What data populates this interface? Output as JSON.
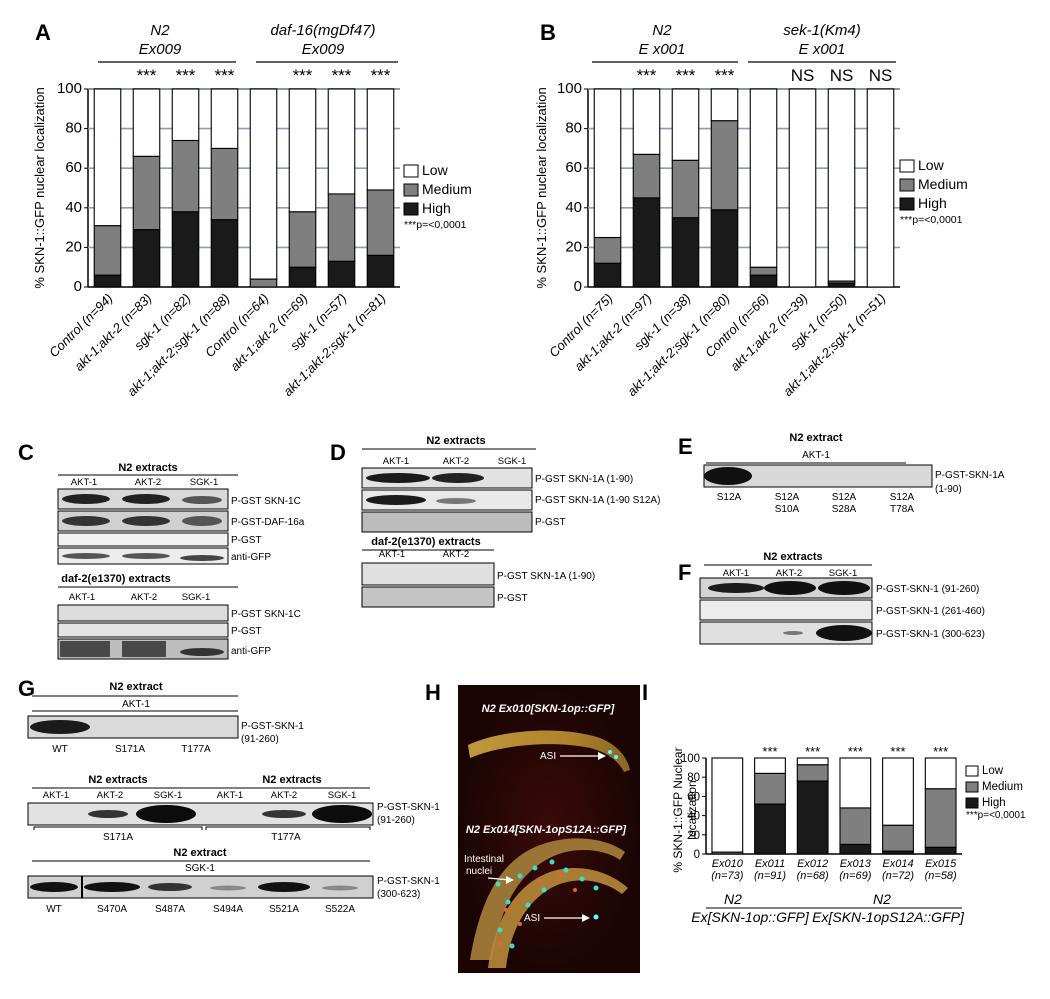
{
  "panel_letters": {
    "A": "A",
    "B": "B",
    "C": "C",
    "D": "D",
    "E": "E",
    "F": "F",
    "G": "G",
    "H": "H",
    "I": "I"
  },
  "colors": {
    "low": "#ffffff",
    "medium": "#7f7f7f",
    "high": "#1a1a1a",
    "grid": "#8aa0aa",
    "blot_bg": "#e6e6e6"
  },
  "chart_data": [
    {
      "id": "A",
      "type": "bar",
      "stacked": true,
      "ylabel": "% SKN-1::GFP nuclear localization",
      "ylim": [
        0,
        100
      ],
      "yticks": [
        "0",
        "20",
        "40",
        "60",
        "80",
        "100"
      ],
      "grid": true,
      "legend_position": "right",
      "legend": [
        "Low",
        "Medium",
        "High"
      ],
      "pvalue_note": "***p=<0,0001",
      "groups": [
        {
          "line1": "N2",
          "line2": "Ex009"
        },
        {
          "line1": "daf-16(mgDf47)",
          "line2": "Ex009"
        }
      ],
      "significance": [
        "",
        "***",
        "***",
        "***",
        "",
        "***",
        "***",
        "***"
      ],
      "categories": [
        "Control (n=94)",
        "akt-1;akt-2 (n=83)",
        "sgk-1 (n=82)",
        "akt-1;akt-2;sgk-1 (n=88)",
        "Control (n=64)",
        "akt-1;akt-2 (n=69)",
        "sgk-1 (n=57)",
        "akt-1;akt-2;sgk-1 (n=81)"
      ],
      "series": [
        {
          "name": "High",
          "values": [
            6,
            29,
            38,
            34,
            0,
            10,
            13,
            16
          ]
        },
        {
          "name": "Medium",
          "values": [
            25,
            37,
            36,
            36,
            4,
            28,
            34,
            33
          ]
        },
        {
          "name": "Low",
          "values": [
            69,
            34,
            26,
            30,
            96,
            62,
            53,
            51
          ]
        }
      ]
    },
    {
      "id": "B",
      "type": "bar",
      "stacked": true,
      "ylabel": "% SKN-1::GFP nuclear localization",
      "ylim": [
        0,
        100
      ],
      "yticks": [
        "0",
        "20",
        "40",
        "60",
        "80",
        "100"
      ],
      "grid": true,
      "legend_position": "right",
      "legend": [
        "Low",
        "Medium",
        "High"
      ],
      "pvalue_note": "***p=<0,0001",
      "groups": [
        {
          "line1": "N2",
          "line2": "E x001"
        },
        {
          "line1": "sek-1(Km4)",
          "line2": "E x001"
        }
      ],
      "significance": [
        "",
        "***",
        "***",
        "***",
        "",
        "NS",
        "NS",
        "NS"
      ],
      "categories": [
        "Control (n=75)",
        "akt-1;akt-2 (n=97)",
        "sgk-1 (n=38)",
        "akt-1;akt-2;sgk-1 (n=80)",
        "Control (n=66)",
        "akt-1;akt-2 (n=39)",
        "sgk-1 (n=50)",
        "akt-1;akt-2;sgk-1 (n=51)"
      ],
      "series": [
        {
          "name": "High",
          "values": [
            12,
            45,
            35,
            39,
            6,
            0,
            2,
            0
          ]
        },
        {
          "name": "Medium",
          "values": [
            13,
            22,
            29,
            45,
            4,
            0,
            1,
            0
          ]
        },
        {
          "name": "Low",
          "values": [
            75,
            33,
            36,
            16,
            90,
            100,
            97,
            100
          ]
        }
      ]
    },
    {
      "id": "I",
      "type": "bar",
      "stacked": true,
      "ylabel": "% SKN-1::GFP Nuclear localization",
      "ylim": [
        0,
        100
      ],
      "yticks": [
        "0",
        "20",
        "40",
        "60",
        "80",
        "100"
      ],
      "grid": false,
      "legend_position": "right",
      "legend": [
        "Low",
        "Medium",
        "High"
      ],
      "pvalue_note": "***p=<0,0001",
      "significance": [
        "",
        "***",
        "***",
        "***",
        "***",
        "***"
      ],
      "categories": [
        "Ex010",
        "Ex011",
        "Ex012",
        "Ex013",
        "Ex014",
        "Ex015"
      ],
      "n_labels": [
        "(n=73)",
        "(n=91)",
        "(n=68)",
        "(n=69)",
        "(n=72)",
        "(n=58)"
      ],
      "group_labels": [
        {
          "line1": "N2",
          "line2": "Ex[SKN-1op::GFP]"
        },
        {
          "line1": "N2",
          "line2": "Ex[SKN-1opS12A::GFP]"
        }
      ],
      "series": [
        {
          "name": "High",
          "values": [
            0,
            52,
            76,
            10,
            3,
            7
          ]
        },
        {
          "name": "Medium",
          "values": [
            2,
            32,
            17,
            38,
            27,
            61
          ]
        },
        {
          "name": "Low",
          "values": [
            98,
            16,
            7,
            52,
            70,
            32
          ]
        }
      ]
    }
  ],
  "blots": {
    "C": {
      "top_title": "N2 extracts",
      "top_lanes": [
        "AKT-1",
        "AKT-2",
        "SGK-1"
      ],
      "top_labels": [
        "P-GST SKN-1C",
        "P-GST-DAF-16a",
        "P-GST",
        "anti-GFP"
      ],
      "bottom_title": "daf-2(e1370) extracts",
      "bottom_lanes": [
        "AKT-1",
        "AKT-2",
        "SGK-1"
      ],
      "bottom_labels": [
        "P-GST SKN-1C",
        "P-GST",
        "anti-GFP"
      ]
    },
    "D": {
      "top_title": "N2 extracts",
      "top_lanes": [
        "AKT-1",
        "AKT-2",
        "SGK-1"
      ],
      "top_labels": [
        "P-GST SKN-1A (1-90)",
        "P-GST SKN-1A (1-90 S12A)",
        "P-GST"
      ],
      "bottom_title": "daf-2(e1370) extracts",
      "bottom_lanes": [
        "AKT-1",
        "AKT-2"
      ],
      "bottom_labels": [
        "P-GST SKN-1A (1-90)",
        "P-GST"
      ]
    },
    "E": {
      "title": "N2 extract",
      "kinase": "AKT-1",
      "label": "P-GST-SKN-1A",
      "label2": "(1-90)",
      "lanes": [
        [
          "S12A",
          ""
        ],
        [
          "S12A",
          "S10A"
        ],
        [
          "S12A",
          "S28A"
        ],
        [
          "S12A",
          "T78A"
        ]
      ]
    },
    "F": {
      "title": "N2 extracts",
      "lanes": [
        "AKT-1",
        "AKT-2",
        "SGK-1"
      ],
      "labels": [
        "P-GST-SKN-1 (91-260)",
        "P-GST-SKN-1 (261-460)",
        "P-GST-SKN-1 (300-623)"
      ]
    },
    "G": {
      "title1": "N2 extract",
      "kinase1": "AKT-1",
      "label1": "P-GST-SKN-1",
      "label1b": "(91-260)",
      "lanes1": [
        "WT",
        "S171A",
        "T177A"
      ],
      "title2a": "N2 extracts",
      "title2b": "N2 extracts",
      "lanes2": [
        "AKT-1",
        "AKT-2",
        "SGK-1",
        "AKT-1",
        "AKT-2",
        "SGK-1"
      ],
      "label2": "P-GST-SKN-1",
      "label2b": "(91-260)",
      "mutants2": [
        "S171A",
        "T177A"
      ],
      "title3": "N2 extract",
      "kinase3": "SGK-1",
      "label3": "P-GST-SKN-1",
      "label3b": "(300-623)",
      "lanes3": [
        "WT",
        "S470A",
        "S487A",
        "S494A",
        "S521A",
        "S522A"
      ]
    }
  },
  "micrograph": {
    "title1": "N2 Ex010[SKN-1op::GFP]",
    "title2": "N2 Ex014[SKN-1opS12A::GFP]",
    "asi1": "ASI",
    "asi2": "ASI",
    "intestinal": "Intestinal",
    "nuclei": "nuclei"
  }
}
